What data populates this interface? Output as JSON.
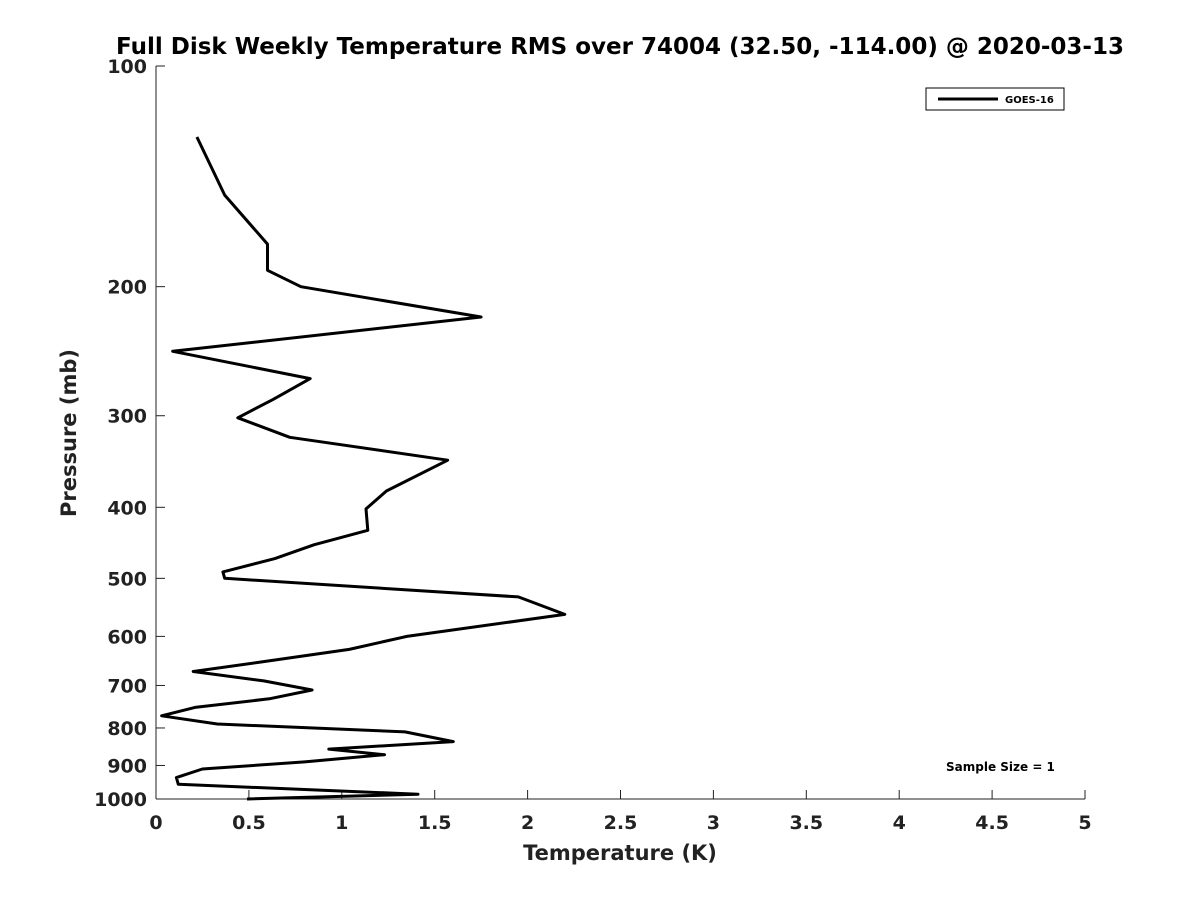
{
  "chart_data": {
    "type": "line",
    "title": "Full Disk Weekly Temperature RMS over 74004 (32.50, -114.00) @ 2020-03-13",
    "xlabel": "Temperature (K)",
    "ylabel": "Pressure (mb)",
    "xlim": [
      0,
      5
    ],
    "ylim": [
      100,
      1000
    ],
    "y_scale": "log",
    "y_reversed": true,
    "x_ticks": [
      "0",
      "0.5",
      "1",
      "1.5",
      "2",
      "2.5",
      "3",
      "3.5",
      "4",
      "4.5",
      "5"
    ],
    "y_ticks": [
      "100",
      "200",
      "300",
      "400",
      "500",
      "600",
      "700",
      "800",
      "900",
      "1000"
    ],
    "grid": false,
    "legend_position": "top-right",
    "line_color": "#000000",
    "series": [
      {
        "name": "GOES-16",
        "x": [
          0.22,
          0.37,
          0.6,
          0.6,
          0.78,
          1.75,
          0.09,
          0.83,
          0.63,
          0.44,
          0.72,
          1.57,
          1.24,
          1.13,
          1.14,
          0.85,
          0.64,
          0.36,
          0.37,
          1.95,
          2.2,
          1.35,
          1.04,
          0.57,
          0.2,
          0.58,
          0.84,
          0.61,
          0.21,
          0.03,
          0.33,
          1.34,
          1.6,
          0.93,
          1.23,
          0.8,
          0.25,
          0.11,
          0.12,
          1.41,
          0.49
        ],
        "y": [
          125,
          150,
          175,
          190,
          200,
          220,
          245,
          267,
          285,
          302,
          321,
          345,
          380,
          402,
          430,
          450,
          470,
          490,
          500,
          530,
          560,
          600,
          625,
          650,
          670,
          690,
          710,
          730,
          750,
          770,
          790,
          810,
          835,
          855,
          870,
          890,
          910,
          935,
          955,
          985,
          1000
        ]
      }
    ],
    "annotation": "Sample Size = 1"
  }
}
